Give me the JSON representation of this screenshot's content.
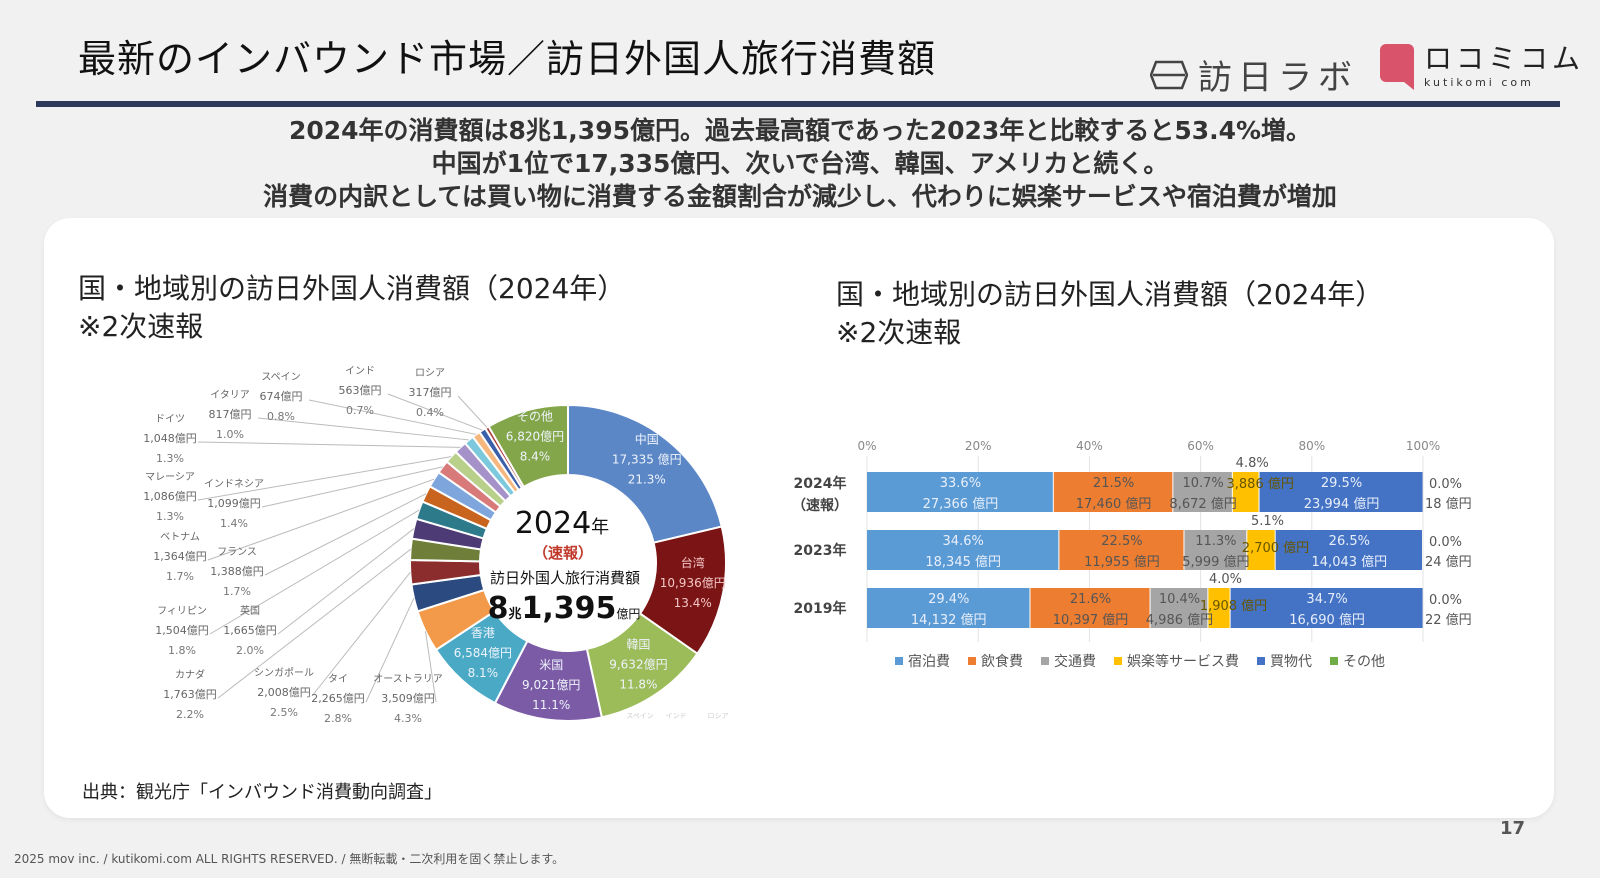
{
  "header": {
    "title": "最新のインバウンド市場／訪日外国人旅行消費額",
    "logo_houjin": "訪日ラボ",
    "logo_kuchikomi": "ロコミコム",
    "logo_kuchikomi_sub": "kutikomi com"
  },
  "summary": [
    "2024年の消費額は8兆1,395億円。過去最高額であった2023年と比較すると53.4%増。",
    "中国が1位で17,335億円、次いで台湾、韓国、アメリカと続く。",
    "消費の内訳としては買い物に消費する金額割合が減少し、代わりに娯楽サービスや宿泊費が増加"
  ],
  "colors": {
    "title_rule": "#2d3a5c",
    "accent_red": "#c0392b",
    "logo_pink": "#d9536b"
  },
  "source": "出典：観光庁「インバウンド消費動向調査」",
  "footer": "2025 mov inc. / kutikomi.com ALL RIGHTS RESERVED. / 無断転載・二次利用を固く禁止します。",
  "page_number": "17",
  "chart_data": [
    {
      "type": "pie",
      "title": "国・地域別の訪日外国人消費額（2024年）",
      "subtitle": "※2次速報",
      "center": {
        "year": "2024",
        "year_unit": "年",
        "note": "（速報）",
        "label": "訪日外国人旅行消費額",
        "total_major": "8",
        "total_major_unit": "兆",
        "total_minor": "1,395",
        "total_unit": "億円"
      },
      "slices": [
        {
          "name": "中国",
          "value": 17335,
          "value_label": "17,335 億円",
          "pct": "21.3%",
          "color": "#5b87c7"
        },
        {
          "name": "台湾",
          "value": 10936,
          "value_label": "10,936億円",
          "pct": "13.4%",
          "color": "#7b1414"
        },
        {
          "name": "韓国",
          "value": 9632,
          "value_label": "9,632億円",
          "pct": "11.8%",
          "color": "#9cbb59"
        },
        {
          "name": "米国",
          "value": 9021,
          "value_label": "9,021億円",
          "pct": "11.1%",
          "color": "#7b5ba6"
        },
        {
          "name": "香港",
          "value": 6584,
          "value_label": "6,584億円",
          "pct": "8.1%",
          "color": "#4aaac6"
        },
        {
          "name": "オーストラリア",
          "value": 3509,
          "value_label": "3,509億円",
          "pct": "4.3%",
          "color": "#f29a4a"
        },
        {
          "name": "タイ",
          "value": 2265,
          "value_label": "2,265億円",
          "pct": "2.8%",
          "color": "#2b4b80"
        },
        {
          "name": "シンガポール",
          "value": 2008,
          "value_label": "2,008億円",
          "pct": "2.5%",
          "color": "#8b2d2d"
        },
        {
          "name": "カナダ",
          "value": 1763,
          "value_label": "1,763億円",
          "pct": "2.2%",
          "color": "#6f7f3a"
        },
        {
          "name": "英国",
          "value": 1665,
          "value_label": "1,665億円",
          "pct": "2.0%",
          "color": "#4c3b74"
        },
        {
          "name": "フィリピン",
          "value": 1504,
          "value_label": "1,504億円",
          "pct": "1.8%",
          "color": "#2d7a8a"
        },
        {
          "name": "フランス",
          "value": 1388,
          "value_label": "1,388億円",
          "pct": "1.7%",
          "color": "#c8641e"
        },
        {
          "name": "ベトナム",
          "value": 1364,
          "value_label": "1,364億円",
          "pct": "1.7%",
          "color": "#7ea6dc"
        },
        {
          "name": "インドネシア",
          "value": 1099,
          "value_label": "1,099億円",
          "pct": "1.4%",
          "color": "#d97a7a"
        },
        {
          "name": "マレーシア",
          "value": 1086,
          "value_label": "1,086億円",
          "pct": "1.3%",
          "color": "#b8d08a"
        },
        {
          "name": "ドイツ",
          "value": 1048,
          "value_label": "1,048億円",
          "pct": "1.3%",
          "color": "#a592c8"
        },
        {
          "name": "イタリア",
          "value": 817,
          "value_label": "817億円",
          "pct": "1.0%",
          "color": "#7cc8dc"
        },
        {
          "name": "スペイン",
          "value": 674,
          "value_label": "674億円",
          "pct": "0.8%",
          "color": "#f5b77d"
        },
        {
          "name": "インド",
          "value": 563,
          "value_label": "563億円",
          "pct": "0.7%",
          "color": "#3b5fa8"
        },
        {
          "name": "ロシア",
          "value": 317,
          "value_label": "317億円",
          "pct": "0.4%",
          "color": "#a8403b"
        },
        {
          "name": "その他",
          "value": 6820,
          "value_label": "6,820億円",
          "pct": "8.4%",
          "color": "#84a64a"
        }
      ],
      "faint_labels": [
        "スペイン",
        "インド",
        "ロシア"
      ]
    },
    {
      "type": "bar",
      "orientation": "horizontal",
      "stacked": "percent",
      "title": "国・地域別の訪日外国人消費額（2024年）",
      "subtitle": "※2次速報",
      "xlim": [
        0,
        100
      ],
      "xticks": [
        "0%",
        "20%",
        "40%",
        "60%",
        "80%",
        "100%"
      ],
      "categories": [
        {
          "label": "2024年",
          "sub": "（速報）"
        },
        {
          "label": "2023年",
          "sub": ""
        },
        {
          "label": "2019年",
          "sub": ""
        }
      ],
      "series": [
        {
          "name": "宿泊費",
          "color": "#5b9bd5",
          "values": [
            33.6,
            34.6,
            29.4
          ],
          "pct_labels": [
            "33.6%",
            "34.6%",
            "29.4%"
          ],
          "amount_labels": [
            "27,366 億円",
            "18,345 億円",
            "14,132 億円"
          ]
        },
        {
          "name": "飲食費",
          "color": "#ed7d31",
          "values": [
            21.5,
            22.5,
            21.6
          ],
          "pct_labels": [
            "21.5%",
            "22.5%",
            "21.6%"
          ],
          "amount_labels": [
            "17,460 億円",
            "11,955 億円",
            "10,397 億円"
          ]
        },
        {
          "name": "交通費",
          "color": "#a5a5a5",
          "values": [
            10.7,
            11.3,
            10.4
          ],
          "pct_labels": [
            "10.7%",
            "11.3%",
            "10.4%"
          ],
          "amount_labels": [
            "8,672 億円",
            "5,999 億円",
            "4,986 億円"
          ]
        },
        {
          "name": "娯楽等サービス費",
          "color": "#ffc000",
          "values": [
            4.8,
            5.1,
            4.0
          ],
          "pct_labels": [
            "4.8%",
            "5.1%",
            "4.0%"
          ],
          "amount_labels": [
            "3,886 億円",
            "2,700 億円",
            "1,908 億円"
          ]
        },
        {
          "name": "買物代",
          "color": "#4472c4",
          "values": [
            29.5,
            26.5,
            34.7
          ],
          "pct_labels": [
            "29.5%",
            "26.5%",
            "34.7%"
          ],
          "amount_labels": [
            "23,994 億円",
            "14,043 億円",
            "16,690 億円"
          ]
        },
        {
          "name": "その他",
          "color": "#70ad47",
          "values": [
            0.0,
            0.0,
            0.0
          ],
          "pct_labels": [
            "0.0%",
            "0.0%",
            "0.0%"
          ],
          "amount_labels": [
            "18 億円",
            "24 億円",
            "22 億円"
          ]
        }
      ],
      "legend": "bottom"
    }
  ]
}
